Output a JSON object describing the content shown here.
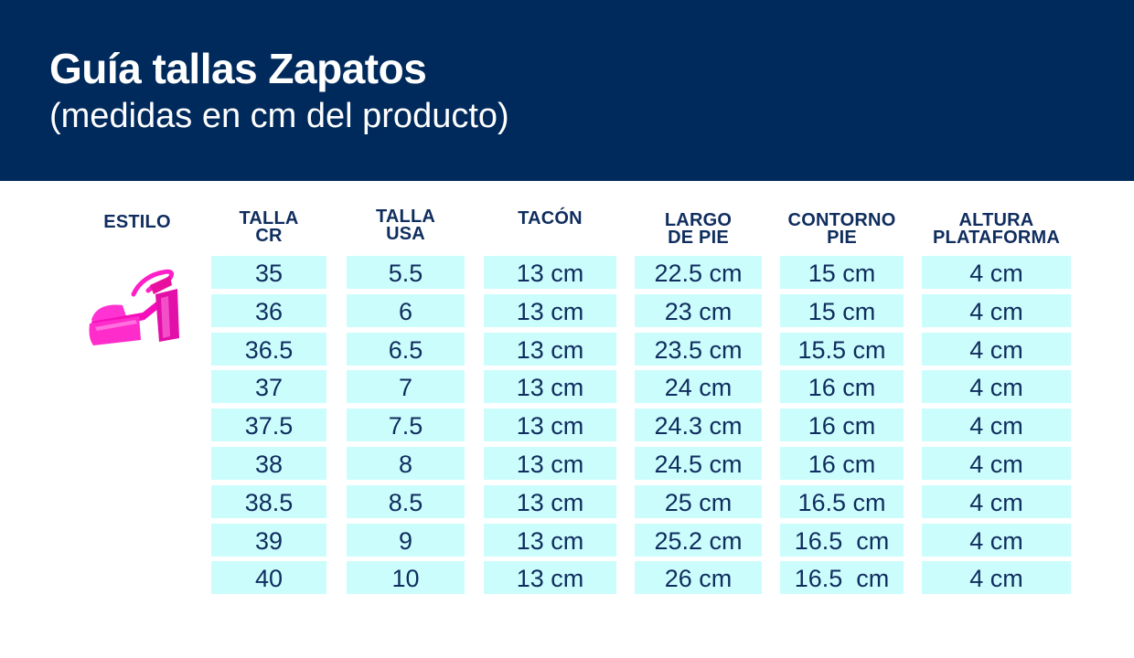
{
  "header": {
    "title": "Guía tallas Zapatos",
    "subtitle": "(medidas en cm del producto)"
  },
  "style_column": {
    "label": "ESTILO",
    "image_icon": "pink-platform-sandal-image"
  },
  "colors": {
    "banner": "#002a5c",
    "header_text": "#0f2d5e",
    "cell_bg": "#ccfdfd",
    "shoe": "#ff1fc8"
  },
  "table": {
    "columns": [
      "TALLA\nCR",
      "TALLA\nUSA",
      "TACÓN",
      "LARGO\nDE PIE",
      "CONTORNO\nPIE",
      "ALTURA\nPLATAFORMA"
    ],
    "rows": [
      [
        "35",
        "5.5",
        "13 cm",
        "22.5 cm",
        "15 cm",
        "4 cm"
      ],
      [
        "36",
        "6",
        "13 cm",
        "23 cm",
        "15 cm",
        "4 cm"
      ],
      [
        "36.5",
        "6.5",
        "13 cm",
        "23.5 cm",
        "15.5 cm",
        "4 cm"
      ],
      [
        "37",
        "7",
        "13 cm",
        "24 cm",
        "16 cm",
        "4 cm"
      ],
      [
        "37.5",
        "7.5",
        "13 cm",
        "24.3 cm",
        "16 cm",
        "4 cm"
      ],
      [
        "38",
        "8",
        "13 cm",
        "24.5 cm",
        "16 cm",
        "4 cm"
      ],
      [
        "38.5",
        "8.5",
        "13 cm",
        "25 cm",
        "16.5 cm",
        "4 cm"
      ],
      [
        "39",
        "9",
        "13 cm",
        "25.2 cm",
        "16.5  cm",
        "4 cm"
      ],
      [
        "40",
        "10",
        "13 cm",
        "26 cm",
        "16.5  cm",
        "4 cm"
      ]
    ]
  }
}
